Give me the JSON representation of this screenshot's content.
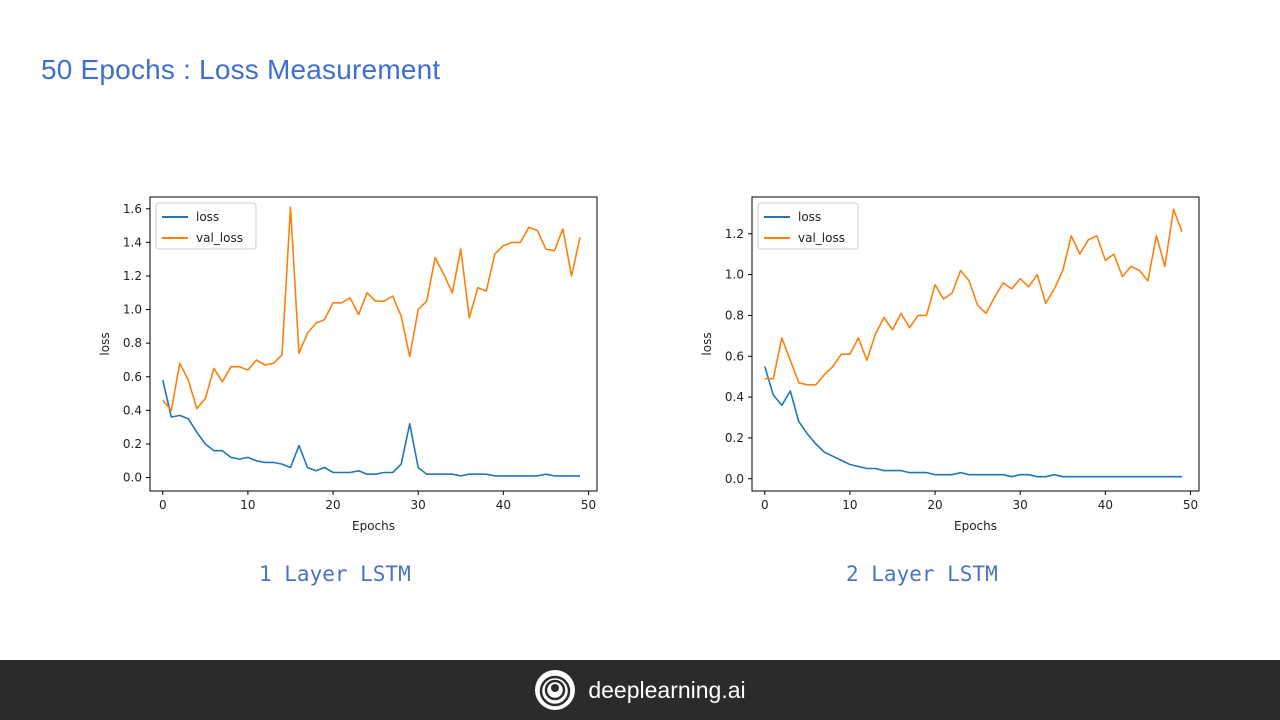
{
  "slide": {
    "title": "50 Epochs : Loss Measurement"
  },
  "captions": [
    "1 Layer LSTM",
    "2 Layer LSTM"
  ],
  "footer": {
    "brand": "deeplearning.ai",
    "logo_icon": "deeplearning-logo-icon"
  },
  "colors": {
    "title": "#3f6fd0",
    "loss": "#1f77b4",
    "val_loss": "#ff7f0e",
    "footer_bg": "#2b2b2b"
  },
  "chart_data": [
    {
      "type": "line",
      "title": "",
      "xlabel": "Epochs",
      "ylabel": "loss",
      "xlim": [
        -1.5,
        51
      ],
      "ylim": [
        -0.08,
        1.67
      ],
      "xticks": [
        0,
        10,
        20,
        30,
        40,
        50
      ],
      "yticks": [
        0.0,
        0.2,
        0.4,
        0.6,
        0.8,
        1.0,
        1.2,
        1.4,
        1.6
      ],
      "ytick_labels": [
        "0.0",
        "0.2",
        "0.4",
        "0.6",
        "0.8",
        "1.0",
        "1.2",
        "1.4",
        "1.6"
      ],
      "legend": "top-left",
      "grid": false,
      "series": [
        {
          "name": "loss",
          "values": [
            0.58,
            0.36,
            0.37,
            0.35,
            0.27,
            0.2,
            0.16,
            0.16,
            0.12,
            0.11,
            0.12,
            0.1,
            0.09,
            0.09,
            0.08,
            0.06,
            0.19,
            0.06,
            0.04,
            0.06,
            0.03,
            0.03,
            0.03,
            0.04,
            0.02,
            0.02,
            0.03,
            0.03,
            0.08,
            0.32,
            0.06,
            0.02,
            0.02,
            0.02,
            0.02,
            0.01,
            0.02,
            0.02,
            0.02,
            0.01,
            0.01,
            0.01,
            0.01,
            0.01,
            0.01,
            0.02,
            0.01,
            0.01,
            0.01,
            0.01
          ]
        },
        {
          "name": "val_loss",
          "values": [
            0.46,
            0.4,
            0.68,
            0.58,
            0.41,
            0.47,
            0.65,
            0.57,
            0.66,
            0.66,
            0.64,
            0.7,
            0.67,
            0.68,
            0.73,
            1.61,
            0.74,
            0.86,
            0.92,
            0.94,
            1.04,
            1.04,
            1.07,
            0.97,
            1.1,
            1.05,
            1.05,
            1.08,
            0.96,
            0.72,
            1.0,
            1.05,
            1.31,
            1.21,
            1.1,
            1.36,
            0.95,
            1.13,
            1.11,
            1.33,
            1.38,
            1.4,
            1.4,
            1.49,
            1.47,
            1.36,
            1.35,
            1.48,
            1.2,
            1.43
          ]
        }
      ]
    },
    {
      "type": "line",
      "title": "",
      "xlabel": "Epochs",
      "ylabel": "loss",
      "xlim": [
        -1.5,
        51
      ],
      "ylim": [
        -0.06,
        1.38
      ],
      "xticks": [
        0,
        10,
        20,
        30,
        40,
        50
      ],
      "yticks": [
        0.0,
        0.2,
        0.4,
        0.6,
        0.8,
        1.0,
        1.2
      ],
      "ytick_labels": [
        "0.0",
        "0.2",
        "0.4",
        "0.6",
        "0.8",
        "1.0",
        "1.2"
      ],
      "legend": "top-left",
      "grid": false,
      "series": [
        {
          "name": "loss",
          "values": [
            0.55,
            0.41,
            0.36,
            0.43,
            0.28,
            0.22,
            0.17,
            0.13,
            0.11,
            0.09,
            0.07,
            0.06,
            0.05,
            0.05,
            0.04,
            0.04,
            0.04,
            0.03,
            0.03,
            0.03,
            0.02,
            0.02,
            0.02,
            0.03,
            0.02,
            0.02,
            0.02,
            0.02,
            0.02,
            0.01,
            0.02,
            0.02,
            0.01,
            0.01,
            0.02,
            0.01,
            0.01,
            0.01,
            0.01,
            0.01,
            0.01,
            0.01,
            0.01,
            0.01,
            0.01,
            0.01,
            0.01,
            0.01,
            0.01,
            0.01
          ]
        },
        {
          "name": "val_loss",
          "values": [
            0.49,
            0.49,
            0.69,
            0.58,
            0.47,
            0.46,
            0.46,
            0.51,
            0.55,
            0.61,
            0.61,
            0.69,
            0.58,
            0.71,
            0.79,
            0.73,
            0.81,
            0.74,
            0.8,
            0.8,
            0.95,
            0.88,
            0.91,
            1.02,
            0.97,
            0.85,
            0.81,
            0.89,
            0.96,
            0.93,
            0.98,
            0.94,
            1.0,
            0.86,
            0.93,
            1.02,
            1.19,
            1.1,
            1.17,
            1.19,
            1.07,
            1.1,
            0.99,
            1.04,
            1.02,
            0.97,
            1.19,
            1.04,
            1.32,
            1.21
          ]
        }
      ]
    }
  ]
}
